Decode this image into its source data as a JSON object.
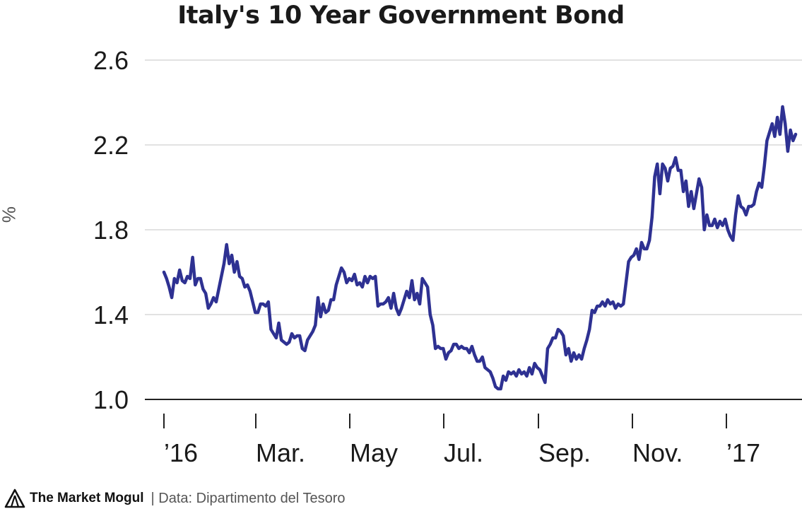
{
  "chart_data": {
    "type": "line",
    "title": "Italy's 10 Year Government Bond",
    "ylabel": "%",
    "xlabel": "",
    "ylim": [
      1.0,
      2.6
    ],
    "yticks": [
      1.0,
      1.4,
      1.8,
      2.2,
      2.6
    ],
    "ytick_labels": [
      "1.0",
      "1.4",
      "1.8",
      "2.2",
      "2.6"
    ],
    "x_tick_labels": [
      "’16",
      "Mar.",
      "May",
      "Jul.",
      "Sep.",
      "Nov.",
      "’17"
    ],
    "grid": true,
    "line_color": "#2e3192",
    "series": [
      {
        "values": [
          1.6,
          1.57,
          1.53,
          1.48,
          1.57,
          1.55,
          1.61,
          1.56,
          1.55,
          1.58,
          1.57,
          1.67,
          1.54,
          1.57,
          1.57,
          1.52,
          1.5,
          1.43,
          1.45,
          1.48,
          1.46,
          1.52,
          1.58,
          1.64,
          1.73,
          1.64,
          1.68,
          1.6,
          1.65,
          1.58,
          1.57,
          1.53,
          1.54,
          1.51,
          1.46,
          1.41,
          1.41,
          1.45,
          1.45,
          1.44,
          1.46,
          1.33,
          1.31,
          1.29,
          1.36,
          1.28,
          1.27,
          1.26,
          1.27,
          1.31,
          1.29,
          1.3,
          1.3,
          1.24,
          1.23,
          1.28,
          1.3,
          1.32,
          1.35,
          1.48,
          1.39,
          1.45,
          1.41,
          1.42,
          1.47,
          1.47,
          1.54,
          1.58,
          1.62,
          1.6,
          1.55,
          1.57,
          1.56,
          1.59,
          1.54,
          1.55,
          1.53,
          1.58,
          1.55,
          1.58,
          1.57,
          1.58,
          1.44,
          1.45,
          1.45,
          1.46,
          1.48,
          1.43,
          1.5,
          1.43,
          1.4,
          1.43,
          1.47,
          1.51,
          1.48,
          1.56,
          1.47,
          1.5,
          1.45,
          1.57,
          1.55,
          1.53,
          1.4,
          1.35,
          1.24,
          1.25,
          1.24,
          1.24,
          1.19,
          1.22,
          1.23,
          1.26,
          1.26,
          1.24,
          1.25,
          1.24,
          1.24,
          1.22,
          1.25,
          1.21,
          1.18,
          1.18,
          1.2,
          1.15,
          1.14,
          1.13,
          1.1,
          1.06,
          1.05,
          1.05,
          1.11,
          1.09,
          1.13,
          1.12,
          1.13,
          1.11,
          1.14,
          1.12,
          1.13,
          1.11,
          1.15,
          1.12,
          1.17,
          1.15,
          1.14,
          1.11,
          1.08,
          1.24,
          1.26,
          1.29,
          1.29,
          1.33,
          1.32,
          1.3,
          1.21,
          1.24,
          1.18,
          1.22,
          1.19,
          1.21,
          1.19,
          1.24,
          1.28,
          1.33,
          1.42,
          1.41,
          1.44,
          1.44,
          1.46,
          1.44,
          1.47,
          1.45,
          1.46,
          1.43,
          1.45,
          1.44,
          1.45,
          1.55,
          1.65,
          1.67,
          1.68,
          1.71,
          1.66,
          1.74,
          1.71,
          1.71,
          1.75,
          1.86,
          2.05,
          2.11,
          1.97,
          2.11,
          2.09,
          2.03,
          2.09,
          2.1,
          2.14,
          2.08,
          2.08,
          1.98,
          2.03,
          1.91,
          1.98,
          1.9,
          1.97,
          2.04,
          2.0,
          1.8,
          1.87,
          1.82,
          1.82,
          1.85,
          1.81,
          1.84,
          1.82,
          1.85,
          1.8,
          1.77,
          1.75,
          1.87,
          1.96,
          1.91,
          1.9,
          1.87,
          1.91,
          1.91,
          1.92,
          1.98,
          2.02,
          2.0,
          2.1,
          2.22,
          2.26,
          2.3,
          2.24,
          2.33,
          2.25,
          2.38,
          2.3,
          2.17,
          2.27,
          2.22,
          2.25
        ]
      }
    ]
  },
  "footer": {
    "brand": "The Market Mogul",
    "source": "| Data: Dipartimento del Tesoro"
  }
}
